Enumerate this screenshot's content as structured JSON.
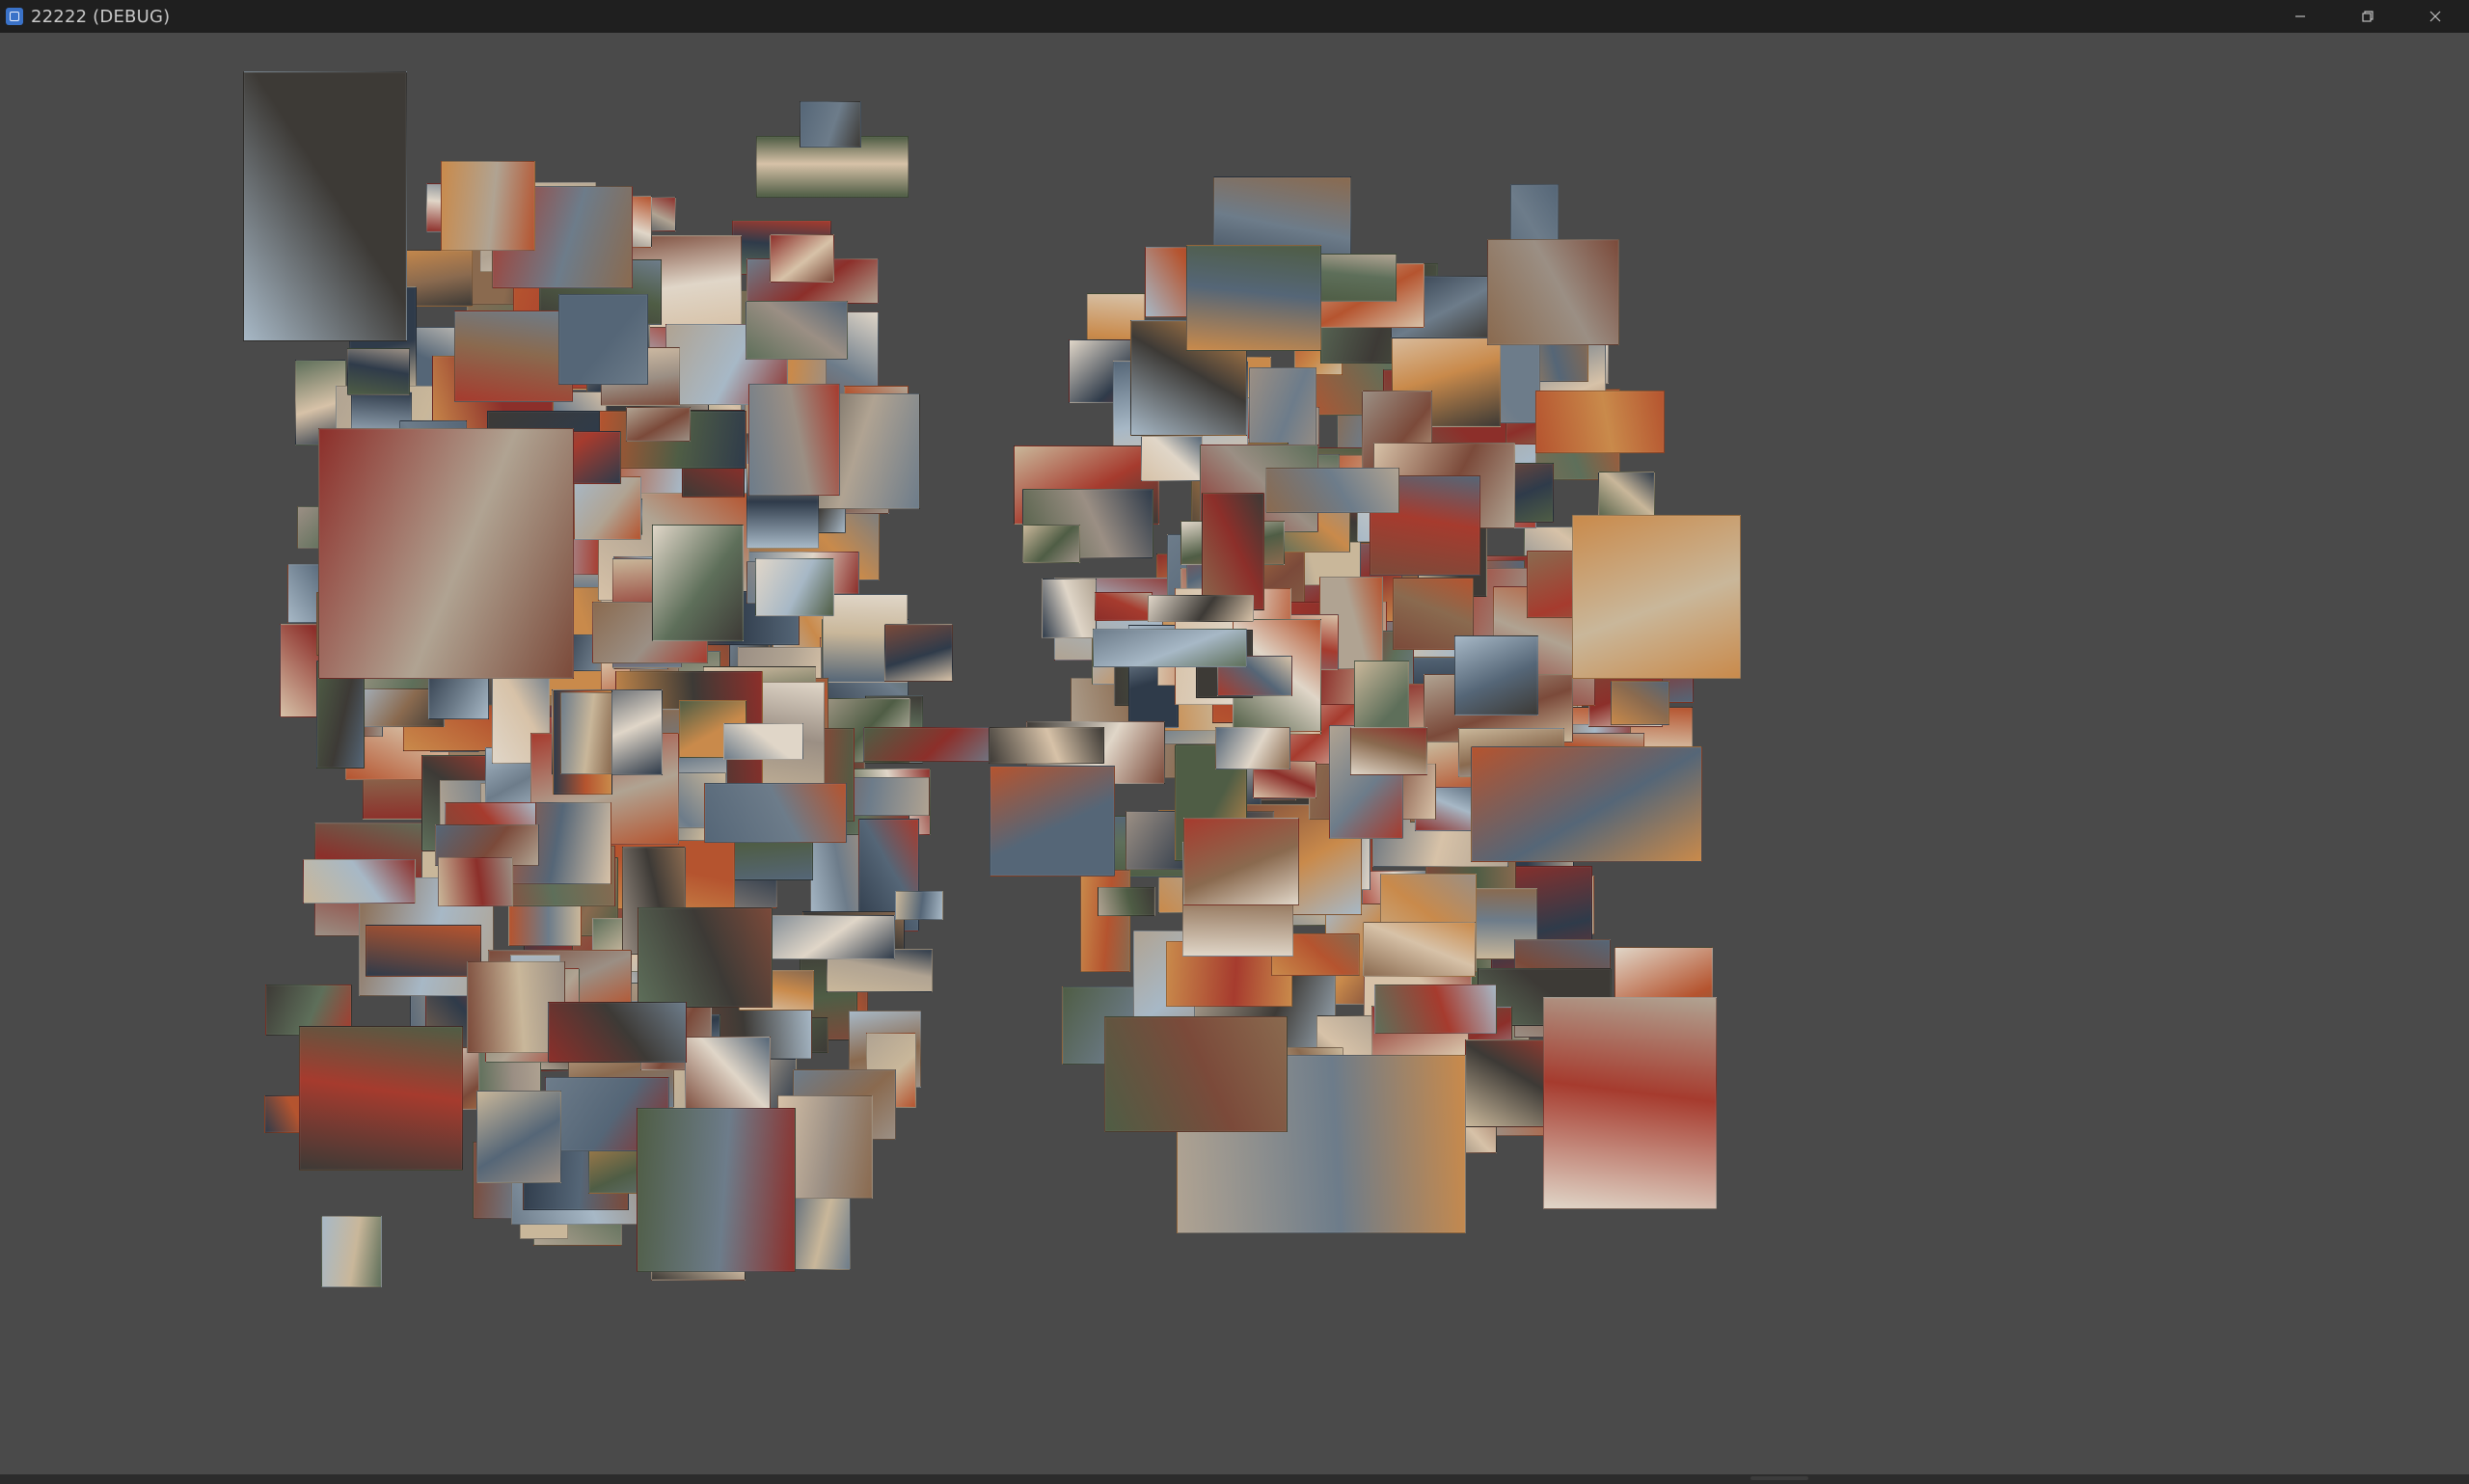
{
  "window": {
    "title": "22222 (DEBUG)",
    "icon": "app-window-icon",
    "controls": [
      {
        "name": "minimize-button",
        "icon": "minimize-icon"
      },
      {
        "name": "restore-button",
        "icon": "restore-icon"
      },
      {
        "name": "close-button",
        "icon": "close-icon"
      }
    ]
  },
  "canvas": {
    "background": "#4a4a4a",
    "content": "photo-collage",
    "tile_palette": [
      "#8a6a4f",
      "#b5542f",
      "#6d7c8a",
      "#c9b79a",
      "#3d3a36",
      "#a63b2e",
      "#d7c2a8",
      "#5e6f5a",
      "#9b8f84",
      "#2f3b4a",
      "#c98a4b",
      "#7b4a3a",
      "#e0d6c8",
      "#556677",
      "#b0a392",
      "#8c2f2a",
      "#4f5d45",
      "#a7b8c6"
    ]
  }
}
